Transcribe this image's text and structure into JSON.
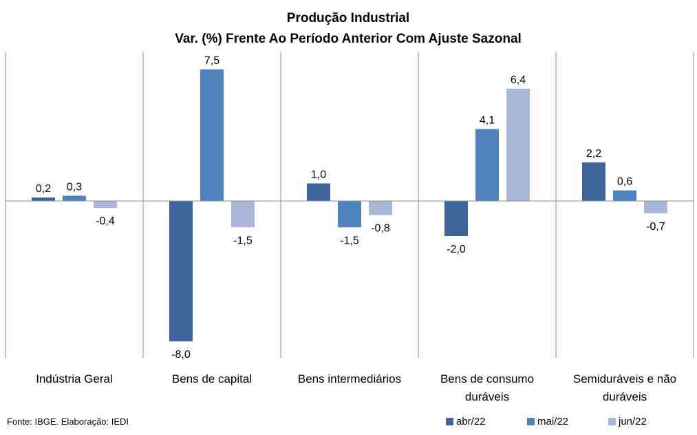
{
  "chart_data": {
    "type": "bar",
    "title": [
      "Produção Industrial",
      "Var. (%) Frente Ao Período Anterior Com Ajuste Sazonal"
    ],
    "categories": [
      [
        "Indústria Geral"
      ],
      [
        "Bens de capital"
      ],
      [
        "Bens intermediários"
      ],
      [
        "Bens de consumo",
        "duráveis"
      ],
      [
        "Semiduráveis e não",
        "duráveis"
      ]
    ],
    "series": [
      {
        "name": "abr/22",
        "color": "#3C6499",
        "values": [
          0.2,
          -8.0,
          1.0,
          -2.0,
          2.2
        ],
        "labels": [
          "0,2",
          "-8,0",
          "1,0",
          "-2,0",
          "2,2"
        ]
      },
      {
        "name": "mai/22",
        "color": "#4F81BD",
        "values": [
          0.3,
          7.5,
          -1.5,
          4.1,
          0.6
        ],
        "labels": [
          "0,3",
          "7,5",
          "-1,5",
          "4,1",
          "0,6"
        ]
      },
      {
        "name": "jun/22",
        "color": "#A9B8D8",
        "values": [
          -0.4,
          -1.5,
          -0.8,
          6.4,
          -0.7
        ],
        "labels": [
          "-0,4",
          "-1,5",
          "-0,8",
          "6,4",
          "-0,7"
        ]
      }
    ],
    "ylim": [
      -8.9,
      8.7
    ],
    "legend_position": "bottom-right",
    "grid": false
  },
  "source_note": "Fonte: IBGE. Elaboração: IEDI"
}
